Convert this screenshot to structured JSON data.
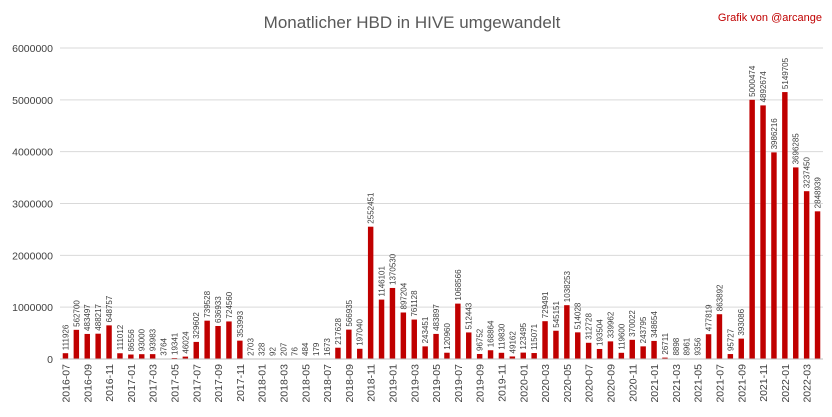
{
  "chart_data": {
    "type": "bar",
    "title": "Monatlicher HBD in HIVE umgewandelt",
    "credit": "Grafik von @arcange",
    "xlabel": "",
    "ylabel": "",
    "ylim": [
      0,
      6000000
    ],
    "yticks": [
      "0",
      "1000000",
      "2000000",
      "3000000",
      "4000000",
      "5000000",
      "6000000"
    ],
    "grid": "horizontal",
    "bar_color": "#c00000",
    "categories": [
      "2016-07",
      "2016-08",
      "2016-09",
      "2016-10",
      "2016-11",
      "2016-12",
      "2017-01",
      "2017-02",
      "2017-03",
      "2017-04",
      "2017-05",
      "2017-06",
      "2017-07",
      "2017-08",
      "2017-09",
      "2017-10",
      "2017-11",
      "2017-12",
      "2018-01",
      "2018-02",
      "2018-03",
      "2018-04",
      "2018-05",
      "2018-06",
      "2018-07",
      "2018-08",
      "2018-09",
      "2018-10",
      "2018-11",
      "2018-12",
      "2019-01",
      "2019-02",
      "2019-03",
      "2019-04",
      "2019-05",
      "2019-06",
      "2019-07",
      "2019-08",
      "2019-09",
      "2019-10",
      "2019-11",
      "2019-12",
      "2020-01",
      "2020-02",
      "2020-03",
      "2020-04",
      "2020-05",
      "2020-06",
      "2020-07",
      "2020-08",
      "2020-09",
      "2020-10",
      "2020-11",
      "2020-12",
      "2021-01",
      "2021-02",
      "2021-03",
      "2021-04",
      "2021-05",
      "2021-06",
      "2021-07",
      "2021-08",
      "2021-09",
      "2021-10",
      "2021-11",
      "2021-12",
      "2022-01",
      "2022-02",
      "2022-03",
      "2022-04"
    ],
    "xtick_labels": [
      "2016-07",
      "2016-09",
      "2016-11",
      "2017-01",
      "2017-03",
      "2017-05",
      "2017-07",
      "2017-09",
      "2017-11",
      "2018-01",
      "2018-03",
      "2018-05",
      "2018-07",
      "2018-09",
      "2018-11",
      "2019-01",
      "2019-03",
      "2019-05",
      "2019-07",
      "2019-09",
      "2019-11",
      "2020-01",
      "2020-03",
      "2020-05",
      "2020-07",
      "2020-09",
      "2020-11",
      "2021-01",
      "2021-03",
      "2021-05",
      "2021-07",
      "2021-09",
      "2021-11",
      "2022-01",
      "2022-03"
    ],
    "values": [
      111926,
      562700,
      483497,
      488217,
      648757,
      111012,
      86556,
      93000,
      93983,
      3764,
      19341,
      46024,
      329602,
      739528,
      636933,
      724560,
      353993,
      2703,
      328,
      92,
      207,
      76,
      484,
      179,
      1673,
      217628,
      566935,
      197040,
      2552451,
      1146101,
      1370530,
      897204,
      761128,
      243451,
      483897,
      120960,
      1068566,
      512443,
      96752,
      168864,
      119830,
      49162,
      123495,
      115071,
      729491,
      545151,
      1038253,
      514028,
      312728,
      193504,
      339962,
      119600,
      370022,
      243795,
      348654,
      26711,
      8898,
      8961,
      9356,
      477819,
      863892,
      95727,
      393086,
      5000474,
      4892674,
      3986216,
      5149705,
      3696285,
      3237450,
      2848939
    ],
    "data_labels": [
      "111926",
      "562700",
      "483497",
      "488217",
      "648757",
      "111012",
      "86556",
      "93000",
      "93983",
      "3764",
      "19341",
      "46024",
      "329602",
      "739528",
      "636933",
      "724560",
      "353993",
      "2703",
      "328",
      "92",
      "207",
      "76",
      "484",
      "179",
      "1673",
      "217628",
      "566935",
      "197040",
      "2552451",
      "1146101",
      "1370530",
      "897204",
      "761128",
      "243451",
      "483897",
      "120960",
      "1068566",
      "512443",
      "96752",
      "168864",
      "119830",
      "49162",
      "123495",
      "115071",
      "729491",
      "545151",
      "1038253",
      "514028",
      "312728",
      "193504",
      "339962",
      "119600",
      "370022",
      "243795",
      "348654",
      "26711",
      "8898",
      "8961",
      "9356",
      "477819",
      "863892",
      "95727",
      "393086",
      "5000474",
      "4892674",
      "3986216",
      "5149705",
      "3696285",
      "3237450",
      "2848939"
    ]
  }
}
